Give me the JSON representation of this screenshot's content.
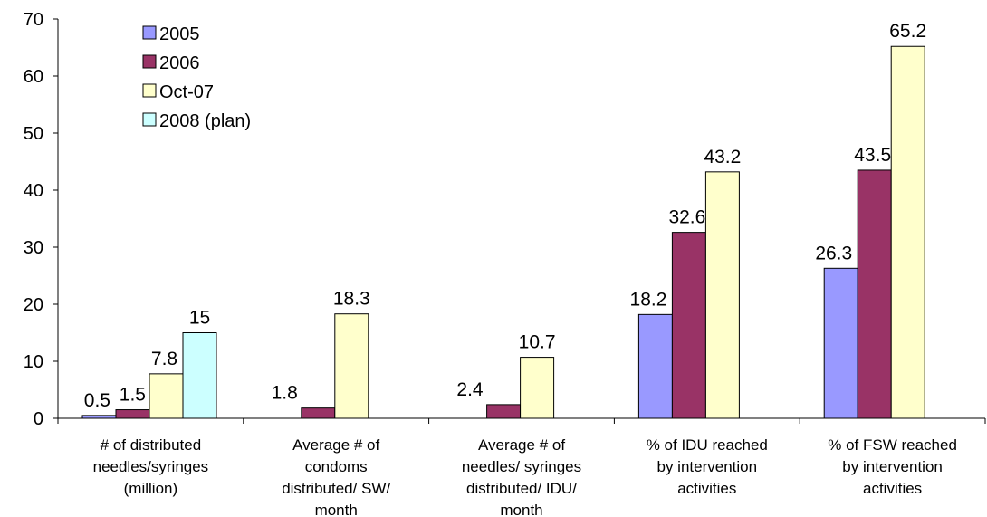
{
  "chart_data": {
    "type": "bar",
    "categories": [
      [
        "# of distributed",
        "needles/syringes",
        "(million)"
      ],
      [
        "Average # of",
        "condoms",
        "distributed/ SW/",
        "month"
      ],
      [
        "Average # of",
        "needles/ syringes",
        "distributed/ IDU/",
        "month"
      ],
      [
        "% of IDU reached",
        "by intervention",
        "activities"
      ],
      [
        "% of FSW reached",
        "by intervention",
        "activities"
      ]
    ],
    "series": [
      {
        "name": "2005",
        "color": "#9999ff",
        "values": [
          0.5,
          null,
          null,
          18.2,
          26.3
        ],
        "labels": [
          "0.5",
          "",
          "",
          "18.2",
          "26.3"
        ]
      },
      {
        "name": "2006",
        "color": "#993366",
        "values": [
          1.5,
          1.8,
          2.4,
          32.6,
          43.5
        ],
        "labels": [
          "1.5",
          "1.8",
          "2.4",
          "32.6",
          "43.5"
        ]
      },
      {
        "name": "Oct-07",
        "color": "#ffffcc",
        "values": [
          7.8,
          18.3,
          10.7,
          43.2,
          65.2
        ],
        "labels": [
          "7.8",
          "18.3",
          "10.7",
          "43.2",
          "65.2"
        ]
      },
      {
        "name": "2008 (plan)",
        "color": "#ccffff",
        "values": [
          15,
          null,
          null,
          null,
          null
        ],
        "labels": [
          "15",
          "",
          "",
          "",
          ""
        ]
      }
    ],
    "ylim": [
      0,
      70
    ],
    "yticks": [
      "0",
      "10",
      "20",
      "30",
      "40",
      "50",
      "60",
      "70"
    ],
    "legend_position": "top-left",
    "grid": false
  }
}
